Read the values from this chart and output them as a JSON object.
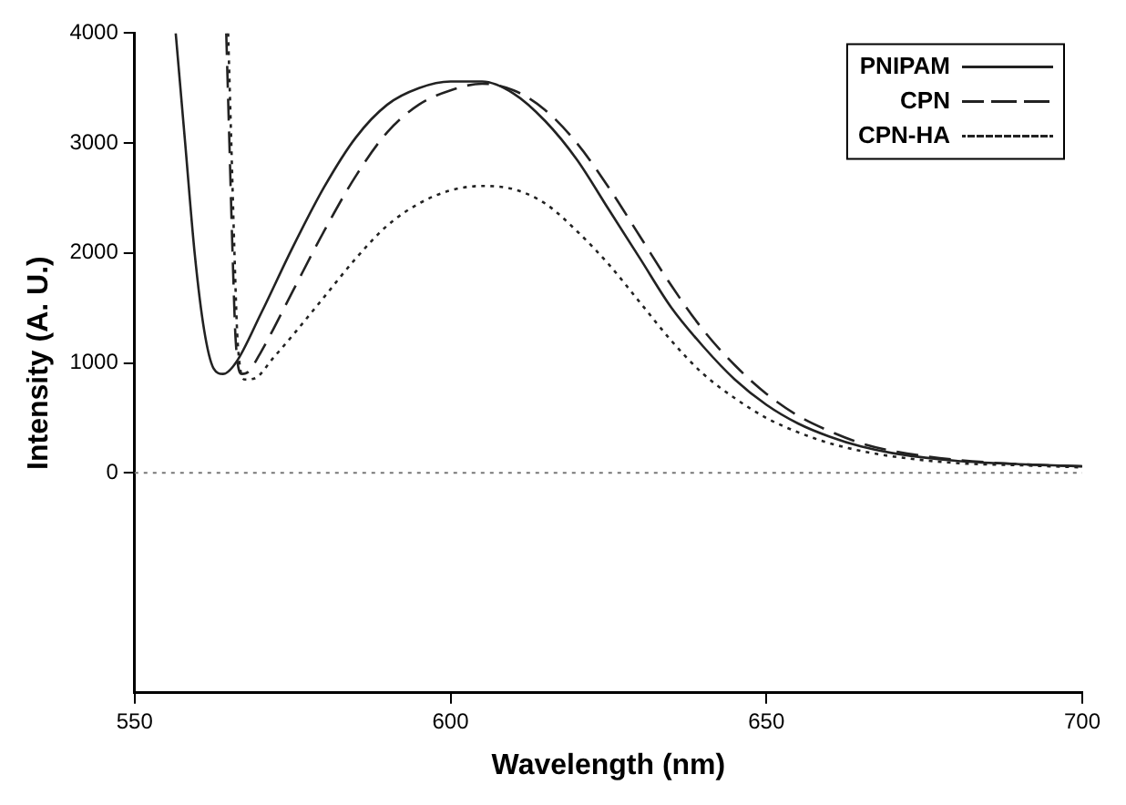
{
  "chart_data": {
    "type": "line",
    "xlabel": "Wavelength (nm)",
    "ylabel": "Intensity (A. U.)",
    "xlim": [
      550,
      700
    ],
    "xticks": [
      550,
      600,
      650,
      700
    ],
    "ylim": [
      -2000,
      4000
    ],
    "yticks": [
      0,
      1000,
      2000,
      3000,
      4000
    ],
    "grid": false,
    "legend": "top right",
    "marker": "none",
    "ref_lines": [
      {
        "axis": "y",
        "value": 0,
        "color": "#777777",
        "line_style": "dotted"
      }
    ],
    "series": [
      {
        "name": "PNIPAM",
        "color": "#222222",
        "line_style": "solid",
        "x": [
          556.5,
          558,
          559.5,
          561,
          562.5,
          564,
          566,
          570,
          575,
          580,
          585,
          590,
          595,
          600,
          605,
          610,
          615,
          620,
          625,
          630,
          635,
          640,
          645,
          650,
          655,
          660,
          665,
          670,
          680,
          690,
          700
        ],
        "values": [
          4000,
          3000,
          2000,
          1300,
          950,
          900,
          1000,
          1450,
          2050,
          2600,
          3050,
          3350,
          3500,
          3560,
          3560,
          3450,
          3200,
          2850,
          2400,
          1950,
          1500,
          1150,
          850,
          620,
          450,
          330,
          240,
          180,
          110,
          80,
          60
        ]
      },
      {
        "name": "CPN",
        "color": "#222222",
        "line_style": "dashed",
        "x": [
          564.5,
          565,
          565.5,
          566,
          567,
          568,
          570,
          575,
          580,
          585,
          590,
          595,
          600,
          605,
          610,
          615,
          620,
          625,
          630,
          635,
          640,
          645,
          650,
          655,
          660,
          665,
          670,
          680,
          690,
          700
        ],
        "values": [
          4000,
          3000,
          2000,
          1200,
          900,
          920,
          1100,
          1650,
          2200,
          2700,
          3100,
          3350,
          3480,
          3540,
          3480,
          3300,
          3000,
          2600,
          2150,
          1700,
          1300,
          980,
          720,
          520,
          380,
          270,
          200,
          120,
          80,
          60
        ]
      },
      {
        "name": "CPN-HA",
        "color": "#222222",
        "line_style": "dotted",
        "x": [
          564.8,
          565.3,
          565.8,
          566.3,
          567.5,
          569,
          572,
          575,
          580,
          585,
          590,
          595,
          600,
          605,
          610,
          615,
          620,
          625,
          630,
          635,
          640,
          645,
          650,
          655,
          660,
          665,
          670,
          680,
          690,
          700
        ],
        "values": [
          4000,
          3000,
          2000,
          1200,
          850,
          860,
          1050,
          1250,
          1600,
          1950,
          2250,
          2450,
          2570,
          2610,
          2580,
          2450,
          2200,
          1900,
          1550,
          1200,
          900,
          680,
          500,
          370,
          270,
          200,
          150,
          90,
          70,
          50
        ]
      }
    ]
  }
}
